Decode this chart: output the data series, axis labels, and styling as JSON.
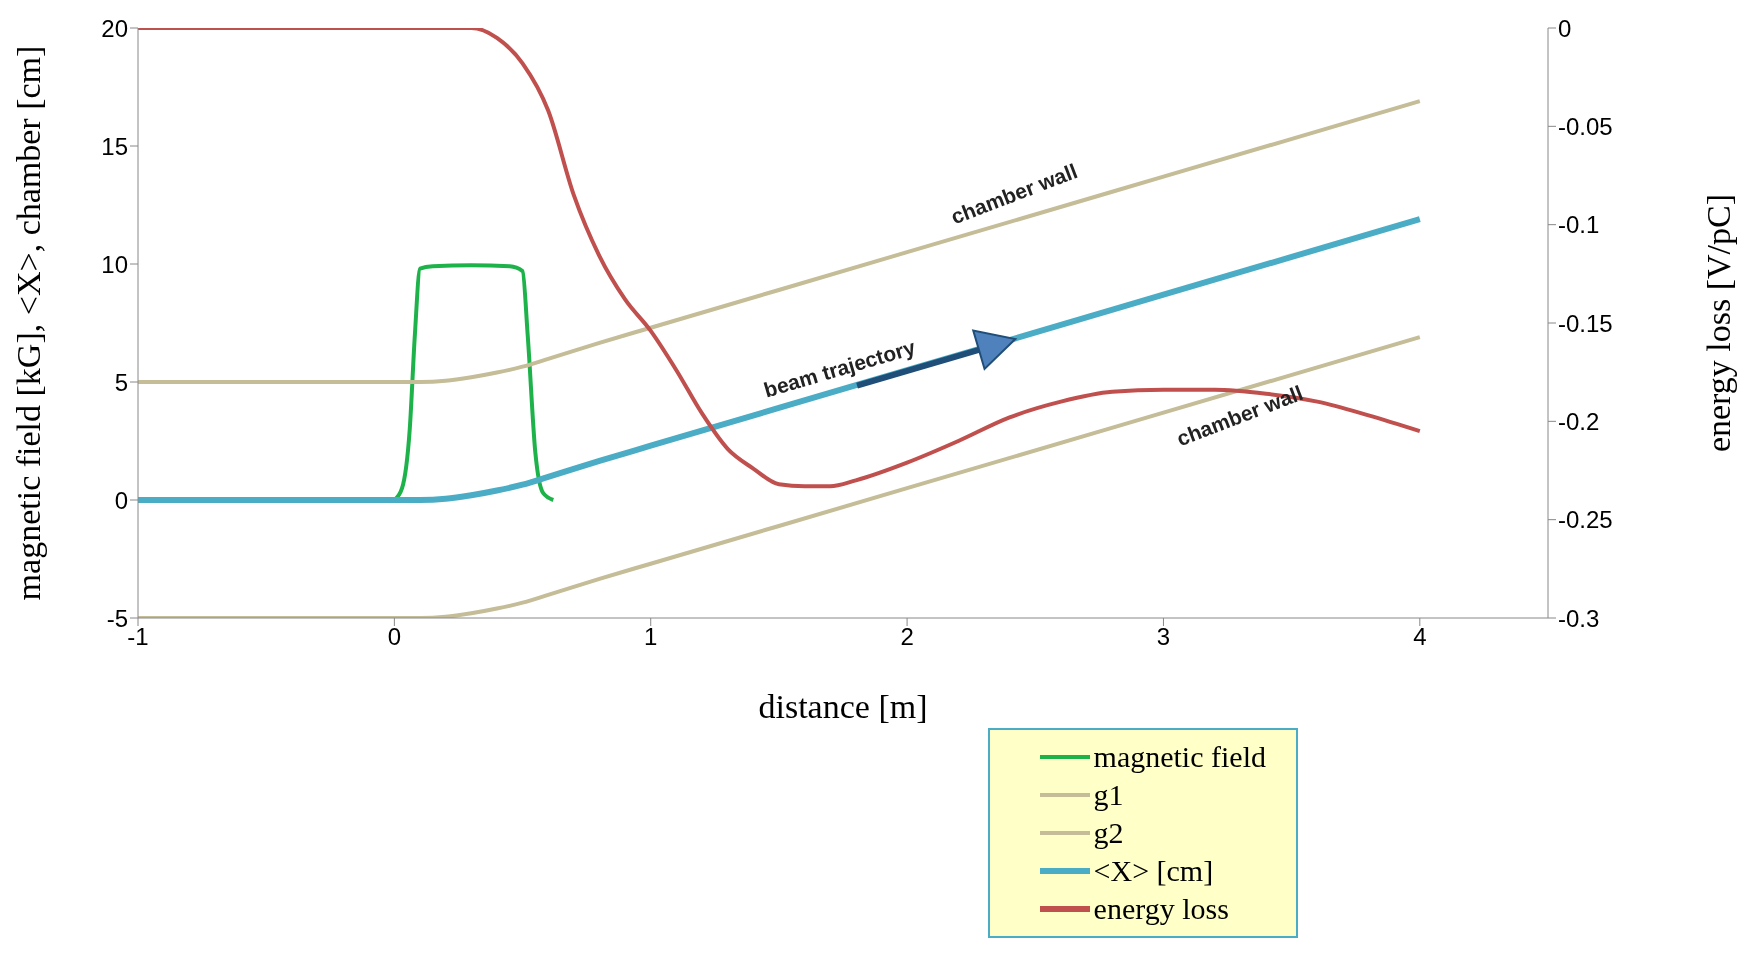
{
  "chart_data": {
    "type": "line",
    "xlabel": "distance [m]",
    "ylabel": "magnetic field [kG], <X>, chamber [cm]",
    "y2label": "energy  loss [V/pC]",
    "xlim": [
      -1,
      4.5
    ],
    "xticks": [
      -1,
      0,
      1,
      2,
      3,
      4
    ],
    "ylim": [
      -5,
      20
    ],
    "yticks": [
      -5,
      0,
      5,
      10,
      15,
      20
    ],
    "y2lim": [
      -0.3,
      0
    ],
    "y2ticks": [
      0,
      -0.05,
      -0.1,
      -0.15,
      -0.2,
      -0.25,
      -0.3
    ],
    "legend": "bottom right",
    "marker": "none",
    "line_style": "solid",
    "series": [
      {
        "name": "magnetic field",
        "color": "#1db34a",
        "x": [
          0,
          0.03,
          0.06,
          0.08,
          0.1,
          0.15,
          0.3,
          0.45,
          0.5,
          0.52,
          0.55,
          0.58,
          0.62
        ],
        "values": [
          0,
          0.5,
          3,
          7,
          9.8,
          9.9,
          9.95,
          9.9,
          9.7,
          7,
          2,
          0.3,
          0
        ]
      },
      {
        "name": "g1",
        "color": "#c4bd97",
        "x": [
          -1,
          0,
          0.1,
          0.2,
          0.3,
          0.4,
          0.5,
          0.6,
          0.8,
          1,
          2,
          3,
          4
        ],
        "values": [
          5,
          5,
          5,
          5.05,
          5.2,
          5.4,
          5.65,
          5.98,
          6.66,
          7.3,
          10.5,
          13.7,
          16.9
        ]
      },
      {
        "name": "g2",
        "color": "#c4bd97",
        "x": [
          -1,
          0,
          0.1,
          0.2,
          0.3,
          0.4,
          0.5,
          0.6,
          0.8,
          1,
          2,
          3,
          4
        ],
        "values": [
          -5,
          -5,
          -5,
          -4.95,
          -4.8,
          -4.6,
          -4.35,
          -4.02,
          -3.34,
          -2.7,
          0.5,
          3.7,
          6.9
        ]
      },
      {
        "name": "<X> [cm]",
        "color": "#4bacc6",
        "x": [
          -1,
          0,
          0.1,
          0.2,
          0.3,
          0.4,
          0.5,
          0.6,
          0.8,
          1,
          2,
          3,
          4
        ],
        "values": [
          0,
          0,
          0,
          0.05,
          0.2,
          0.4,
          0.65,
          0.98,
          1.66,
          2.3,
          5.5,
          8.7,
          11.9
        ]
      },
      {
        "name": "energy loss",
        "color": "#c0504d",
        "axis": "y2",
        "x": [
          -1,
          0,
          0.3,
          0.4,
          0.5,
          0.6,
          0.7,
          0.8,
          0.9,
          1,
          1.1,
          1.2,
          1.3,
          1.4,
          1.5,
          1.6,
          1.7,
          1.8,
          2,
          2.2,
          2.4,
          2.6,
          2.8,
          3,
          3.2,
          3.4,
          3.6,
          3.8,
          4
        ],
        "values": [
          0,
          0,
          0,
          -0.005,
          -0.018,
          -0.042,
          -0.085,
          -0.116,
          -0.138,
          -0.154,
          -0.174,
          -0.196,
          -0.214,
          -0.224,
          -0.232,
          -0.233,
          -0.233,
          -0.23,
          -0.221,
          -0.21,
          -0.198,
          -0.19,
          -0.185,
          -0.184,
          -0.184,
          -0.186,
          -0.19,
          -0.197,
          -0.205
        ]
      }
    ],
    "annotations": [
      "chamber wall",
      {
        "text": "beam trajectory",
        "x": 1.76,
        "y": 4.7
      },
      "chamber wall"
    ]
  }
}
